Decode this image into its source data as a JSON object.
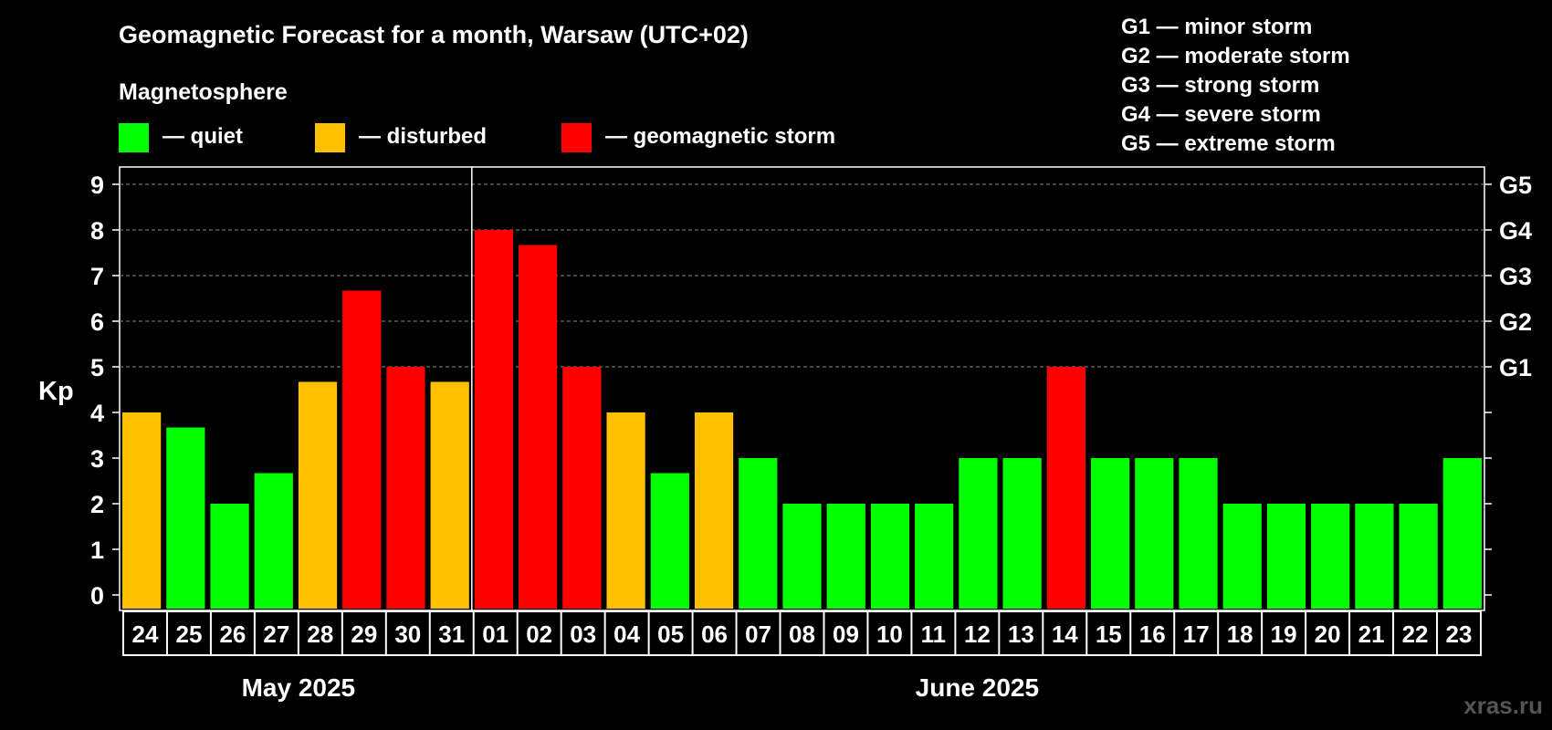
{
  "chart_data": {
    "type": "bar",
    "title": "Geomagnetic Forecast for a month, Warsaw (UTC+02)",
    "legend_title": "Magnetosphere",
    "legend": [
      {
        "label": "— quiet",
        "color": "#00ff00"
      },
      {
        "label": "— disturbed",
        "color": "#ffc000"
      },
      {
        "label": "— geomagnetic storm",
        "color": "#ff0000"
      }
    ],
    "storm_scale": [
      "G1 — minor storm",
      "G2 — moderate storm",
      "G3 — strong storm",
      "G4 — severe storm",
      "G5 — extreme storm"
    ],
    "ylabel": "Kp",
    "ylim": [
      0,
      9
    ],
    "yticks": [
      "0",
      "1",
      "2",
      "3",
      "4",
      "5",
      "6",
      "7",
      "8",
      "9"
    ],
    "right_axis": [
      {
        "kp": 5,
        "label": "G1"
      },
      {
        "kp": 6,
        "label": "G2"
      },
      {
        "kp": 7,
        "label": "G3"
      },
      {
        "kp": 8,
        "label": "G4"
      },
      {
        "kp": 9,
        "label": "G5"
      }
    ],
    "grid": true,
    "categories": [
      "24",
      "25",
      "26",
      "27",
      "28",
      "29",
      "30",
      "31",
      "01",
      "02",
      "03",
      "04",
      "05",
      "06",
      "07",
      "08",
      "09",
      "10",
      "11",
      "12",
      "13",
      "14",
      "15",
      "16",
      "17",
      "18",
      "19",
      "20",
      "21",
      "22",
      "23"
    ],
    "values": [
      4,
      3.67,
      2,
      2.67,
      4.67,
      6.67,
      5,
      4.67,
      8,
      7.67,
      5,
      4,
      2.67,
      4,
      3,
      2,
      2,
      2,
      2,
      3,
      3,
      5,
      3,
      3,
      3,
      2,
      2,
      2,
      2,
      2,
      3
    ],
    "levels": [
      "disturbed",
      "quiet",
      "quiet",
      "quiet",
      "disturbed",
      "storm",
      "storm",
      "disturbed",
      "storm",
      "storm",
      "storm",
      "disturbed",
      "quiet",
      "disturbed",
      "quiet",
      "quiet",
      "quiet",
      "quiet",
      "quiet",
      "quiet",
      "quiet",
      "storm",
      "quiet",
      "quiet",
      "quiet",
      "quiet",
      "quiet",
      "quiet",
      "quiet",
      "quiet",
      "quiet"
    ],
    "level_colors": {
      "quiet": "#00ff00",
      "disturbed": "#ffc000",
      "storm": "#ff0000"
    },
    "months": [
      {
        "label": "May 2025",
        "from": 0,
        "to": 7
      },
      {
        "label": "June 2025",
        "from": 8,
        "to": 30
      }
    ],
    "month_divider_after": 7
  },
  "watermark": "xras.ru"
}
